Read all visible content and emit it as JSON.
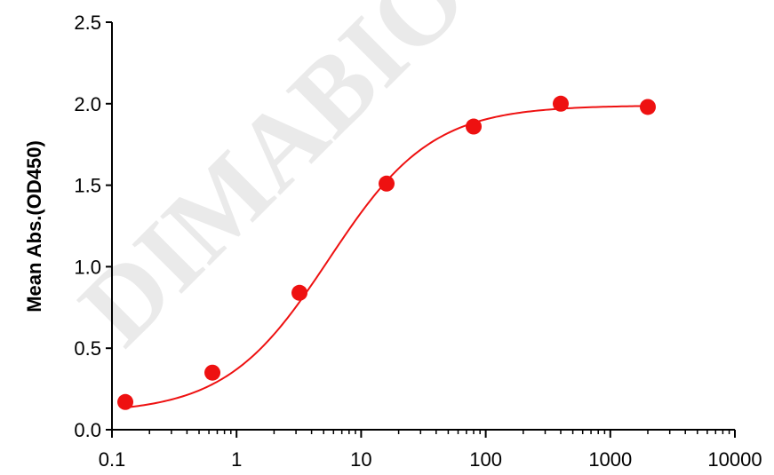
{
  "watermark": "DIMABIO",
  "colors": {
    "series": "#ee1111",
    "axis": "#000000",
    "watermark": "#d9d9d9"
  },
  "chart_data": {
    "type": "scatter",
    "title": "",
    "xlabel": "",
    "ylabel": "Mean Abs.(OD450)",
    "x_scale": "log",
    "xlim": [
      0.1,
      10000
    ],
    "ylim": [
      0,
      2.5
    ],
    "x_ticks": [
      "0.1",
      "1",
      "10",
      "100",
      "1000",
      "10000"
    ],
    "y_ticks": [
      "0.0",
      "0.5",
      "1.0",
      "1.5",
      "2.0",
      "2.5"
    ],
    "grid": false,
    "legend": "none",
    "fit_curve": "four-parameter logistic (sigmoidal)",
    "series": [
      {
        "x": [
          0.128,
          0.64,
          3.2,
          16,
          80,
          400,
          2000
        ],
        "y": [
          0.17,
          0.35,
          0.84,
          1.51,
          1.86,
          2.0,
          1.98
        ]
      }
    ]
  }
}
